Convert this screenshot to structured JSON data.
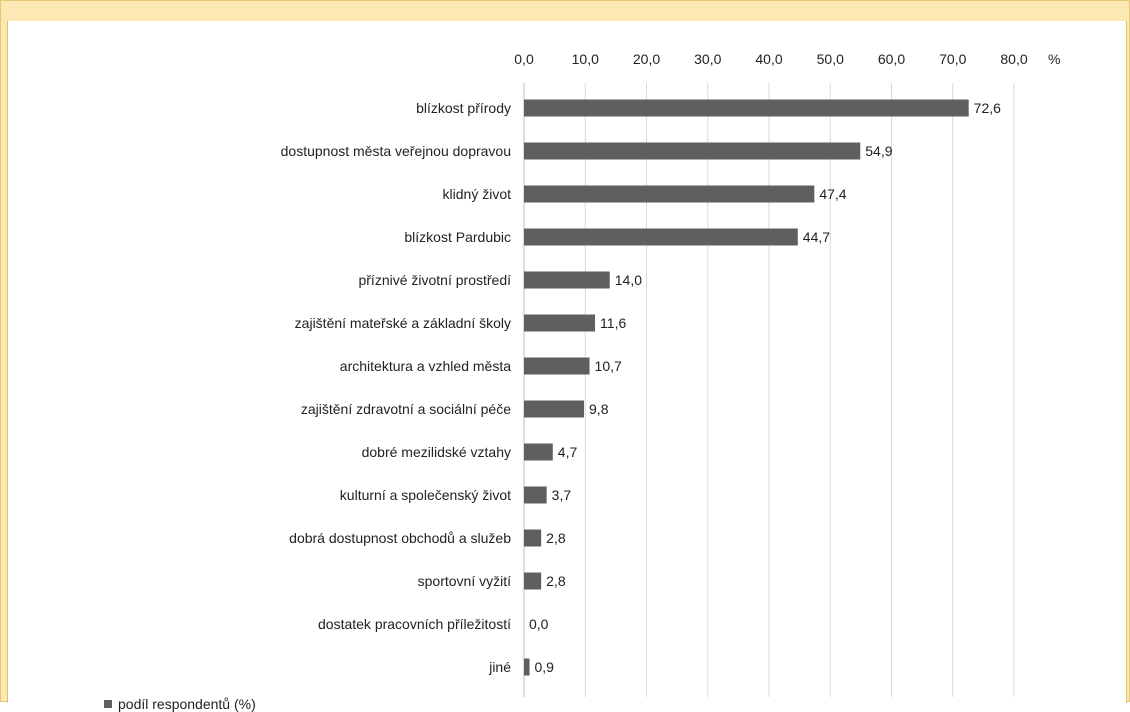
{
  "chart_data": {
    "type": "bar",
    "orientation": "horizontal",
    "title": "",
    "xlabel": "",
    "ylabel": "",
    "unit": "%",
    "xlim": [
      0,
      80
    ],
    "x_ticks": [
      "0,0",
      "10,0",
      "20,0",
      "30,0",
      "40,0",
      "50,0",
      "60,0",
      "70,0",
      "80,0"
    ],
    "x_axis_position": "top",
    "grid": true,
    "legend_position": "bottom-left",
    "bar_color": "#5f5f5f",
    "categories": [
      "blízkost přírody",
      "dostupnost města veřejnou dopravou",
      "klidný život",
      "blízkost Pardubic",
      "příznivé životní prostředí",
      "zajištění mateřské a základní školy",
      "architektura a vzhled města",
      "zajištění zdravotní a sociální péče",
      "dobré mezilidské vztahy",
      "kulturní a společenský život",
      "dobrá dostupnost obchodů a služeb",
      "sportovní vyžití",
      "dostatek pracovních příležitostí",
      "jiné"
    ],
    "series": [
      {
        "name": "podíl respondentů (%)",
        "values": [
          72.6,
          54.9,
          47.4,
          44.7,
          14.0,
          11.6,
          10.7,
          9.8,
          4.7,
          3.7,
          2.8,
          2.8,
          0.0,
          0.9
        ],
        "labels": [
          "72,6",
          "54,9",
          "47,4",
          "44,7",
          "14,0",
          "11,6",
          "10,7",
          "9,8",
          "4,7",
          "3,7",
          "2,8",
          "2,8",
          "0,0",
          "0,9"
        ]
      }
    ]
  }
}
